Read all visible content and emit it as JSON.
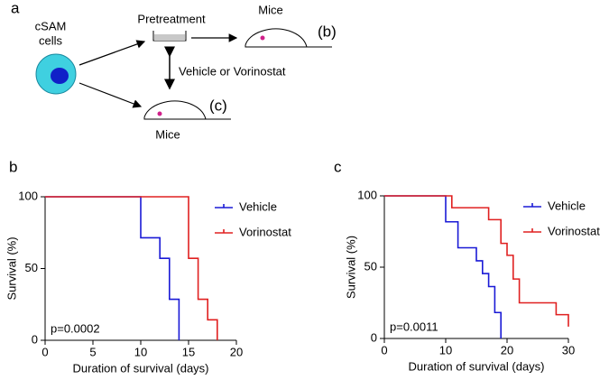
{
  "diagram": {
    "panel_label": "a",
    "cell_label": [
      "cSAM",
      "cells"
    ],
    "pretreatment": "Pretreatment",
    "mice_top": "Mice",
    "ref_top": "(b)",
    "treatment": "Vehicle or Vorinostat",
    "ref_bottom": "(c)",
    "mice_bottom": "Mice"
  },
  "chart_data": [
    {
      "type": "line",
      "panel_label": "b",
      "xlabel": "Duration of survival (days)",
      "ylabel": "Survival (%)",
      "annotation": "p=0.0002",
      "xlim": [
        0,
        20
      ],
      "ylim": [
        0,
        100
      ],
      "xticks": [
        0,
        5,
        10,
        15,
        20
      ],
      "yticks": [
        0,
        50,
        100
      ],
      "legend": "upper right",
      "series": [
        {
          "name": "Vehicle",
          "color": "#1a1ad6",
          "x": [
            0,
            10,
            10,
            12,
            12,
            13,
            13,
            14,
            14
          ],
          "values": [
            100,
            100,
            71.4,
            71.4,
            57.1,
            57.1,
            28.6,
            28.6,
            0
          ]
        },
        {
          "name": "Vorinostat",
          "color": "#e02020",
          "x": [
            0,
            15,
            15,
            16,
            16,
            17,
            17,
            18,
            18
          ],
          "values": [
            100,
            100,
            57.1,
            57.1,
            28.6,
            28.6,
            14.3,
            14.3,
            0
          ]
        }
      ]
    },
    {
      "type": "line",
      "panel_label": "c",
      "xlabel": "Duration of survival (days)",
      "ylabel": "Survival (%)",
      "annotation": "p=0.0011",
      "xlim": [
        0,
        30
      ],
      "ylim": [
        0,
        100
      ],
      "xticks": [
        0,
        10,
        20,
        30
      ],
      "yticks": [
        0,
        50,
        100
      ],
      "legend": "upper right",
      "series": [
        {
          "name": "Vehicle",
          "color": "#1a1ad6",
          "x": [
            0,
            10,
            10,
            12,
            12,
            15,
            15,
            16,
            16,
            17,
            17,
            18,
            18,
            19,
            19
          ],
          "values": [
            100,
            100,
            81.8,
            81.8,
            63.6,
            63.6,
            54.5,
            54.5,
            45.5,
            45.5,
            36.4,
            36.4,
            18.2,
            18.2,
            0
          ]
        },
        {
          "name": "Vorinostat",
          "color": "#e02020",
          "x": [
            0,
            11,
            11,
            17,
            17,
            19,
            19,
            20,
            20,
            21,
            21,
            22,
            22,
            28,
            28,
            30,
            30
          ],
          "values": [
            100,
            100,
            91.7,
            91.7,
            83.3,
            83.3,
            66.7,
            66.7,
            58.3,
            58.3,
            41.7,
            41.7,
            25,
            25,
            16.7,
            16.7,
            8.3
          ]
        }
      ]
    }
  ]
}
